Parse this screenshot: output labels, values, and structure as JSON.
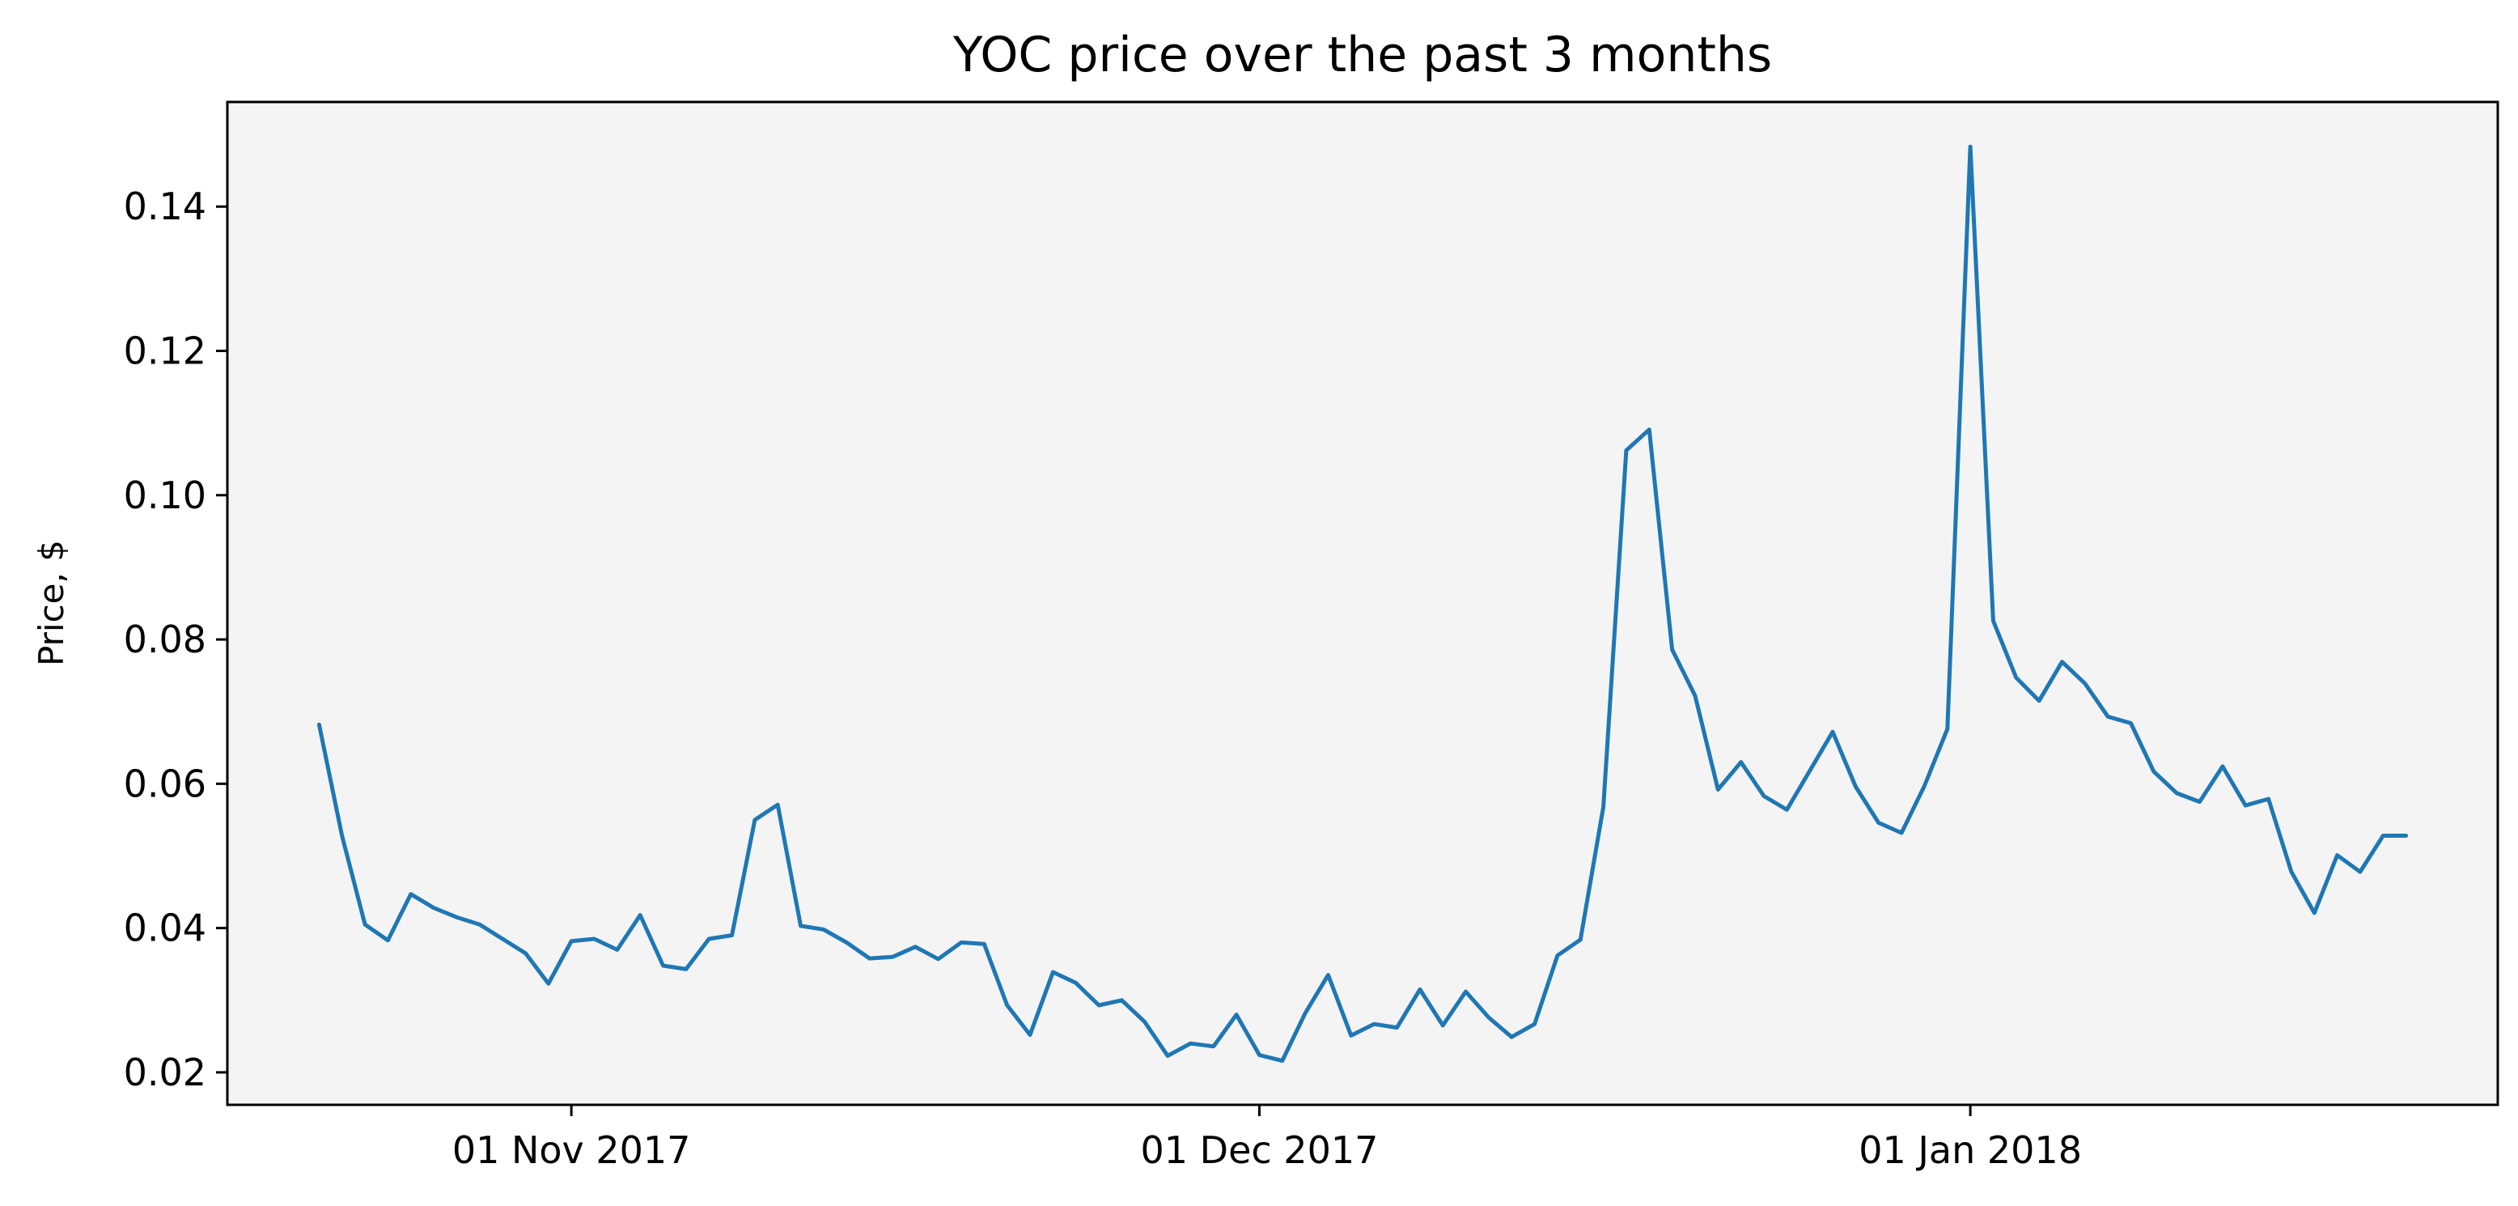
{
  "chart_data": {
    "type": "line",
    "title": "YOC price over the past 3 months",
    "xlabel": "",
    "ylabel": "Price, $",
    "x_tick_labels": [
      {
        "date": "2017-11-01",
        "label": "01 Nov 2017"
      },
      {
        "date": "2017-12-01",
        "label": "01 Dec 2017"
      },
      {
        "date": "2018-01-01",
        "label": "01 Jan 2018"
      }
    ],
    "y_ticks": [
      0.02,
      0.04,
      0.06,
      0.08,
      0.1,
      0.12,
      0.14
    ],
    "y_tick_labels": [
      "0.02",
      "0.04",
      "0.06",
      "0.08",
      "0.10",
      "0.12",
      "0.14"
    ],
    "xlim": [
      "2017-10-17",
      "2018-01-24"
    ],
    "ylim": [
      0.0155,
      0.1545
    ],
    "grid": false,
    "legend": "none",
    "colors": {
      "line": "#1f77b4",
      "plot_background": "#f4f4f4",
      "axes": "#000000"
    },
    "series": [
      {
        "x": [
          "2017-10-21",
          "2017-10-22",
          "2017-10-23",
          "2017-10-24",
          "2017-10-25",
          "2017-10-26",
          "2017-10-27",
          "2017-10-28",
          "2017-10-29",
          "2017-10-30",
          "2017-10-31",
          "2017-11-01",
          "2017-11-02",
          "2017-11-03",
          "2017-11-04",
          "2017-11-05",
          "2017-11-06",
          "2017-11-07",
          "2017-11-08",
          "2017-11-09",
          "2017-11-10",
          "2017-11-11",
          "2017-11-12",
          "2017-11-13",
          "2017-11-14",
          "2017-11-15",
          "2017-11-16",
          "2017-11-17",
          "2017-11-18",
          "2017-11-19",
          "2017-11-20",
          "2017-11-21",
          "2017-11-22",
          "2017-11-23",
          "2017-11-24",
          "2017-11-25",
          "2017-11-26",
          "2017-11-27",
          "2017-11-28",
          "2017-11-29",
          "2017-11-30",
          "2017-12-01",
          "2017-12-02",
          "2017-12-03",
          "2017-12-04",
          "2017-12-05",
          "2017-12-06",
          "2017-12-07",
          "2017-12-08",
          "2017-12-09",
          "2017-12-10",
          "2017-12-11",
          "2017-12-12",
          "2017-12-13",
          "2017-12-14",
          "2017-12-15",
          "2017-12-16",
          "2017-12-17",
          "2017-12-18",
          "2017-12-19",
          "2017-12-20",
          "2017-12-21",
          "2017-12-22",
          "2017-12-23",
          "2017-12-24",
          "2017-12-25",
          "2017-12-26",
          "2017-12-27",
          "2017-12-28",
          "2017-12-29",
          "2017-12-30",
          "2017-12-31",
          "2018-01-01",
          "2018-01-02",
          "2018-01-03",
          "2018-01-04",
          "2018-01-05",
          "2018-01-06",
          "2018-01-07",
          "2018-01-08",
          "2018-01-09",
          "2018-01-10",
          "2018-01-11",
          "2018-01-12",
          "2018-01-13",
          "2018-01-14",
          "2018-01-15",
          "2018-01-16",
          "2018-01-17",
          "2018-01-18",
          "2018-01-19",
          "2018-01-20"
        ],
        "values": [
          0.0682,
          0.0528,
          0.0405,
          0.0383,
          0.0447,
          0.0428,
          0.0415,
          0.0405,
          0.0385,
          0.0365,
          0.0323,
          0.0382,
          0.0385,
          0.037,
          0.0418,
          0.0348,
          0.0343,
          0.0385,
          0.039,
          0.055,
          0.0571,
          0.0403,
          0.0398,
          0.038,
          0.0358,
          0.036,
          0.0374,
          0.0357,
          0.038,
          0.0378,
          0.0293,
          0.0252,
          0.0339,
          0.0324,
          0.0293,
          0.03,
          0.027,
          0.0223,
          0.024,
          0.0236,
          0.028,
          0.0224,
          0.0216,
          0.0282,
          0.0335,
          0.0251,
          0.0267,
          0.0262,
          0.0315,
          0.0265,
          0.0312,
          0.0276,
          0.0249,
          0.0267,
          0.0362,
          0.0384,
          0.0568,
          0.1062,
          0.1091,
          0.0786,
          0.0722,
          0.0592,
          0.063,
          0.0583,
          0.0564,
          0.0618,
          0.0672,
          0.0596,
          0.0546,
          0.0532,
          0.0597,
          0.0676,
          0.1483,
          0.0826,
          0.0747,
          0.0715,
          0.0769,
          0.0739,
          0.0693,
          0.0684,
          0.0617,
          0.0587,
          0.0575,
          0.0624,
          0.057,
          0.0579,
          0.0478,
          0.0421,
          0.0501,
          0.0478,
          0.0528,
          0.0528
        ]
      }
    ]
  }
}
